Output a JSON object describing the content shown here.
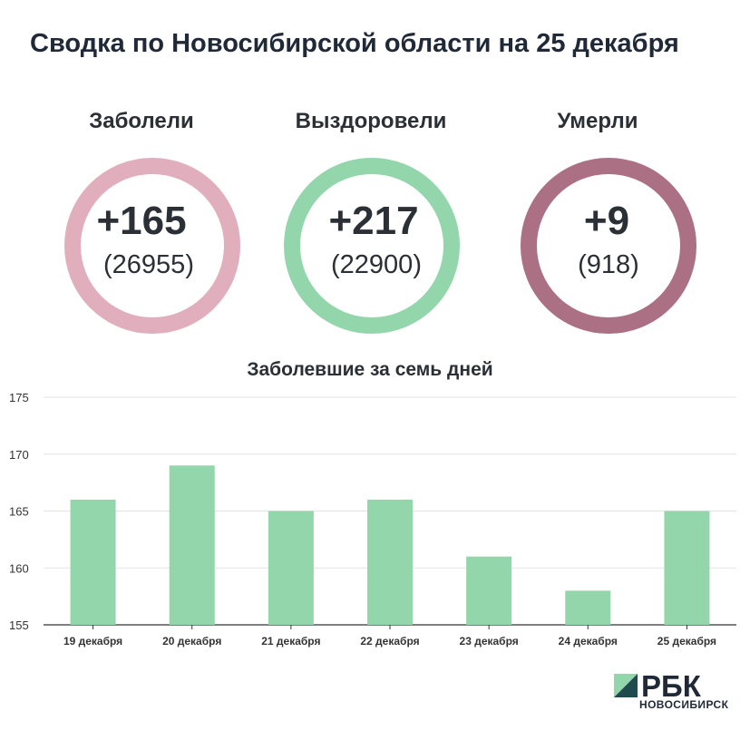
{
  "title": "Сводка по Новосибирской области на 25 декабря",
  "stats": [
    {
      "label": "Заболели",
      "delta": "+165",
      "total": "(26955)",
      "color": "#e0aebc"
    },
    {
      "label": "Выздоровели",
      "delta": "+217",
      "total": "(22900)",
      "color": "#93d6ab"
    },
    {
      "label": "Умерли",
      "delta": "+9",
      "total": "(918)",
      "color": "#ab7084"
    }
  ],
  "chart_data": {
    "type": "bar",
    "title": "Заболевшие за семь дней",
    "categories": [
      "19 декабря",
      "20 декабря",
      "21 декабря",
      "22 декабря",
      "23 декабря",
      "24 декабря",
      "25 декабря"
    ],
    "values": [
      166,
      169,
      165,
      166,
      161,
      158,
      165
    ],
    "ylim": [
      155,
      175
    ],
    "yticks": [
      155,
      160,
      165,
      170,
      175
    ],
    "grid": true,
    "bar_color": "#93d6ab",
    "xlabel": "",
    "ylabel": ""
  },
  "logo": {
    "name": "РБК",
    "subtitle": "НОВОСИБИРСК"
  }
}
